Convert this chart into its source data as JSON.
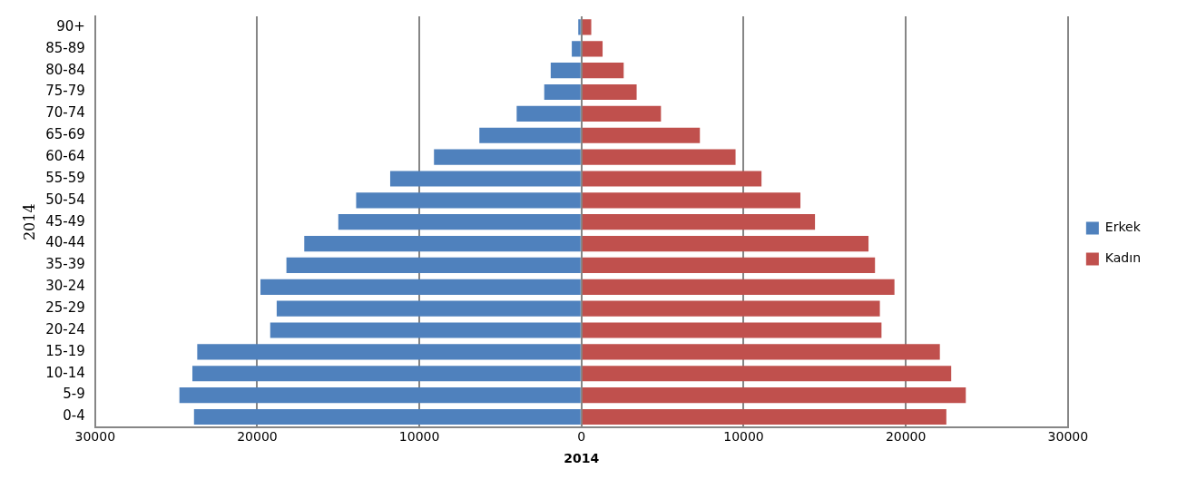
{
  "chart_data": {
    "type": "bar",
    "orientation": "horizontal",
    "stacked": true,
    "xlabel": "2014",
    "ylabel": "2014",
    "categories": [
      "90+",
      "85-89",
      "80-84",
      "75-79",
      "70-74",
      "65-69",
      "60-64",
      "55-59",
      "50-54",
      "45-49",
      "40-44",
      "35-39",
      "30-24",
      "25-29",
      "20-24",
      "15-19",
      "10-14",
      "5-9",
      "0-4"
    ],
    "series": [
      {
        "name": "Erkek",
        "color": "#4f81bd",
        "values": [
          -200,
          -600,
          -1900,
          -2300,
          -4000,
          -6300,
          -9100,
          -11800,
          -13900,
          -15000,
          -17100,
          -18200,
          -19800,
          -18800,
          -19200,
          -23700,
          -24000,
          -24800,
          -23900
        ]
      },
      {
        "name": "Kadın",
        "color": "#c0504d",
        "values": [
          600,
          1300,
          2600,
          3400,
          4900,
          7300,
          9500,
          11100,
          13500,
          14400,
          17700,
          18100,
          19300,
          18400,
          18500,
          22100,
          22800,
          23700,
          22500
        ]
      }
    ],
    "xlim": [
      -30000,
      30000
    ],
    "xticks": [
      {
        "value": -30000,
        "label": "30000"
      },
      {
        "value": -20000,
        "label": "20000"
      },
      {
        "value": -10000,
        "label": "10000"
      },
      0,
      10000,
      20000,
      30000
    ],
    "grid": "x",
    "legend": "right"
  }
}
